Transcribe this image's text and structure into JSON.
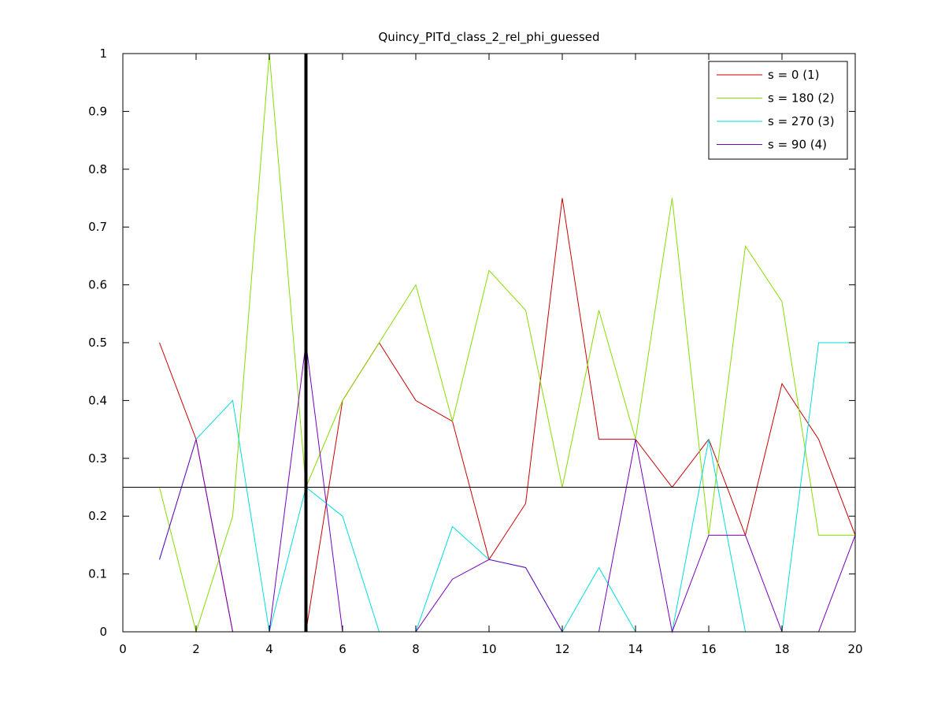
{
  "chart_data": {
    "type": "line",
    "title": "Quincy_PITd_class_2_rel_phi_guessed",
    "xlabel": "",
    "ylabel": "",
    "xlim": [
      0,
      20
    ],
    "ylim": [
      0,
      1
    ],
    "xticks": [
      0,
      2,
      4,
      6,
      8,
      10,
      12,
      14,
      16,
      18,
      20
    ],
    "yticks": [
      0,
      0.1,
      0.2,
      0.3,
      0.4,
      0.5,
      0.6,
      0.7,
      0.8,
      0.9,
      1
    ],
    "x": [
      1,
      2,
      3,
      4,
      5,
      6,
      7,
      8,
      9,
      10,
      11,
      12,
      13,
      14,
      15,
      16,
      17,
      18,
      19,
      20
    ],
    "series": [
      {
        "name": "s = 0 (1)",
        "color": "#cc0000",
        "values": [
          0.5,
          0.333,
          0,
          0,
          0,
          0.4,
          0.5,
          0.4,
          0.364,
          0.125,
          0.222,
          0.75,
          0.333,
          0.333,
          0.25,
          0.333,
          0.167,
          0.429,
          0.333,
          0.167
        ]
      },
      {
        "name": "s = 180 (2)",
        "color": "#88dd00",
        "values": [
          0.25,
          0,
          0.2,
          1,
          0.25,
          0.4,
          0.5,
          0.6,
          0.364,
          0.625,
          0.556,
          0.25,
          0.556,
          0.333,
          0.75,
          0.167,
          0.667,
          0.571,
          0.167,
          0.167
        ]
      },
      {
        "name": "s = 270 (3)",
        "color": "#00dddd",
        "values": [
          0.125,
          0.333,
          0.4,
          0,
          0.25,
          0.2,
          0,
          0,
          0.182,
          0.125,
          0.111,
          0,
          0.111,
          0,
          0,
          0.333,
          0,
          0,
          0.5,
          0.5
        ]
      },
      {
        "name": "s = 90 (4)",
        "color": "#7700bb",
        "values": [
          0.125,
          0.333,
          0,
          0,
          0.5,
          0,
          0,
          0,
          0.091,
          0.125,
          0.111,
          0,
          0,
          0.333,
          0,
          0.167,
          0.167,
          0,
          0,
          0.167
        ]
      }
    ],
    "reference_lines": {
      "horizontal_y": 0.25,
      "vertical_x": 5
    },
    "grid": false,
    "legend_position": "top-right"
  }
}
